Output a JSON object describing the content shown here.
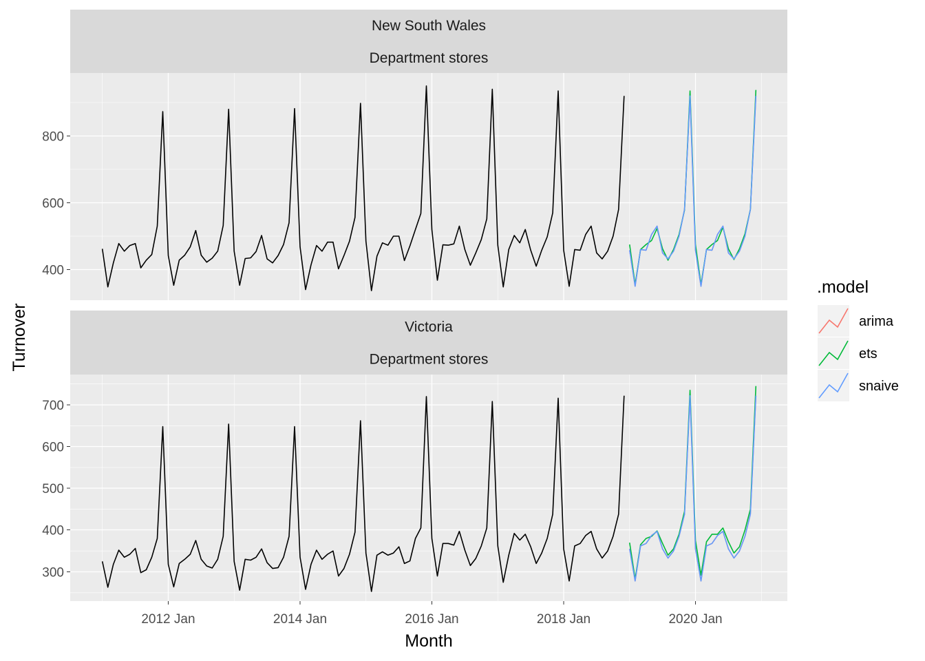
{
  "chart_data": {
    "type": "line",
    "xlabel": "Month",
    "ylabel": "Turnover",
    "x_tick_labels": [
      "2012 Jan",
      "2014 Jan",
      "2016 Jan",
      "2018 Jan",
      "2020 Jan"
    ],
    "legend": {
      "title": ".model",
      "position": "right",
      "entries": [
        {
          "name": "arima",
          "color": "#F8766D"
        },
        {
          "name": "ets",
          "color": "#00BA38"
        },
        {
          "name": "snaive",
          "color": "#619CFF"
        }
      ]
    },
    "history_start": "2011 Jan",
    "forecast_start": "2019 Jan",
    "grid": true,
    "panels": [
      {
        "strip": [
          "New South Wales",
          "Department stores"
        ],
        "y_ticks": [
          "400",
          "600",
          "800"
        ],
        "ylim": [
          320,
          970
        ],
        "history": [
          462,
          348,
          420,
          478,
          455,
          472,
          478,
          405,
          428,
          445,
          530,
          873,
          442,
          353,
          428,
          443,
          468,
          517,
          443,
          422,
          434,
          455,
          532,
          880,
          455,
          353,
          433,
          435,
          454,
          502,
          432,
          420,
          442,
          475,
          540,
          882,
          468,
          340,
          414,
          472,
          455,
          482,
          482,
          402,
          442,
          485,
          556,
          898,
          485,
          337,
          440,
          480,
          473,
          500,
          500,
          427,
          471,
          520,
          568,
          950,
          520,
          368,
          474,
          473,
          477,
          530,
          460,
          413,
          450,
          490,
          552,
          940,
          473,
          348,
          460,
          502,
          480,
          520,
          458,
          410,
          458,
          498,
          570,
          935,
          458,
          350,
          460,
          458,
          505,
          530,
          450,
          432,
          455,
          500,
          580,
          920
        ],
        "forecasts": [
          {
            "name": "arima",
            "color": "#F8766D",
            "values": [
              458,
              350,
              460,
              458,
              505,
              530,
              450,
              432,
              455,
              500,
              580,
              920,
              458,
              350,
              460,
              458,
              505,
              530,
              450,
              432,
              455,
              500,
              580,
              920
            ]
          },
          {
            "name": "ets",
            "color": "#00BA38",
            "values": [
              475,
              355,
              460,
              475,
              487,
              523,
              462,
              428,
              460,
              505,
              578,
              935,
              475,
              355,
              460,
              475,
              487,
              527,
              462,
              430,
              462,
              507,
              580,
              938
            ]
          },
          {
            "name": "snaive",
            "color": "#619CFF",
            "values": [
              458,
              350,
              460,
              458,
              505,
              530,
              450,
              432,
              455,
              500,
              580,
              920,
              458,
              350,
              460,
              458,
              505,
              530,
              450,
              432,
              455,
              500,
              580,
              920
            ]
          }
        ]
      },
      {
        "strip": [
          "Victoria",
          "Department stores"
        ],
        "y_ticks": [
          "300",
          "400",
          "500",
          "600",
          "700"
        ],
        "ylim": [
          240,
          760
        ],
        "history": [
          325,
          263,
          318,
          352,
          335,
          342,
          356,
          298,
          305,
          335,
          380,
          648,
          318,
          264,
          320,
          330,
          342,
          375,
          330,
          314,
          309,
          330,
          385,
          654,
          325,
          256,
          330,
          328,
          335,
          355,
          322,
          308,
          310,
          335,
          385,
          648,
          335,
          258,
          318,
          352,
          330,
          342,
          350,
          290,
          308,
          342,
          395,
          662,
          345,
          253,
          340,
          348,
          340,
          345,
          360,
          320,
          326,
          380,
          405,
          720,
          380,
          290,
          368,
          368,
          364,
          397,
          352,
          315,
          332,
          362,
          405,
          708,
          362,
          275,
          340,
          392,
          376,
          390,
          360,
          320,
          345,
          380,
          438,
          716,
          355,
          278,
          362,
          368,
          387,
          397,
          355,
          333,
          350,
          385,
          438,
          722
        ],
        "forecasts": [
          {
            "name": "arima",
            "color": "#F8766D",
            "values": [
              355,
              278,
              362,
              368,
              387,
              397,
              355,
              333,
              350,
              385,
              438,
              722,
              355,
              278,
              362,
              368,
              387,
              397,
              355,
              333,
              350,
              385,
              438,
              722
            ]
          },
          {
            "name": "ets",
            "color": "#00BA38",
            "values": [
              370,
              283,
              365,
              380,
              385,
              398,
              368,
              340,
              355,
              390,
              445,
              735,
              375,
              292,
              372,
              390,
              390,
              405,
              372,
              345,
              360,
              400,
              450,
              745
            ]
          },
          {
            "name": "snaive",
            "color": "#619CFF",
            "values": [
              355,
              278,
              362,
              368,
              387,
              397,
              355,
              333,
              350,
              385,
              438,
              722,
              355,
              278,
              362,
              368,
              387,
              397,
              355,
              333,
              350,
              385,
              438,
              722
            ]
          }
        ]
      }
    ]
  }
}
